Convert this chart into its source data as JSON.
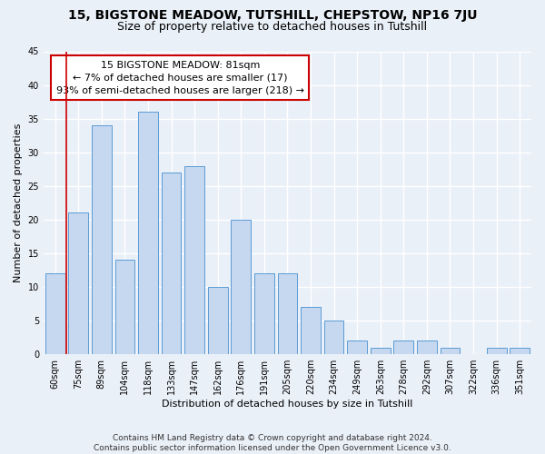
{
  "title": "15, BIGSTONE MEADOW, TUTSHILL, CHEPSTOW, NP16 7JU",
  "subtitle": "Size of property relative to detached houses in Tutshill",
  "xlabel": "Distribution of detached houses by size in Tutshill",
  "ylabel": "Number of detached properties",
  "categories": [
    "60sqm",
    "75sqm",
    "89sqm",
    "104sqm",
    "118sqm",
    "133sqm",
    "147sqm",
    "162sqm",
    "176sqm",
    "191sqm",
    "205sqm",
    "220sqm",
    "234sqm",
    "249sqm",
    "263sqm",
    "278sqm",
    "292sqm",
    "307sqm",
    "322sqm",
    "336sqm",
    "351sqm"
  ],
  "values": [
    12,
    21,
    34,
    14,
    36,
    27,
    28,
    10,
    20,
    12,
    12,
    7,
    5,
    2,
    1,
    2,
    2,
    1,
    0,
    1,
    1
  ],
  "bar_color": "#c5d8f0",
  "bar_edge_color": "#5b9bd5",
  "annotation_text": "15 BIGSTONE MEADOW: 81sqm\n← 7% of detached houses are smaller (17)\n93% of semi-detached houses are larger (218) →",
  "annotation_box_color": "#ffffff",
  "annotation_box_edge": "#cc0000",
  "vline_color": "#cc0000",
  "ylim": [
    0,
    45
  ],
  "yticks": [
    0,
    5,
    10,
    15,
    20,
    25,
    30,
    35,
    40,
    45
  ],
  "footer": "Contains HM Land Registry data © Crown copyright and database right 2024.\nContains public sector information licensed under the Open Government Licence v3.0.",
  "bg_color": "#eaf0f8",
  "plot_bg_color": "#eaf0f8",
  "grid_color": "#ffffff",
  "title_fontsize": 10,
  "subtitle_fontsize": 9,
  "axis_label_fontsize": 8,
  "tick_fontsize": 7,
  "annotation_fontsize": 8,
  "footer_fontsize": 6.5
}
